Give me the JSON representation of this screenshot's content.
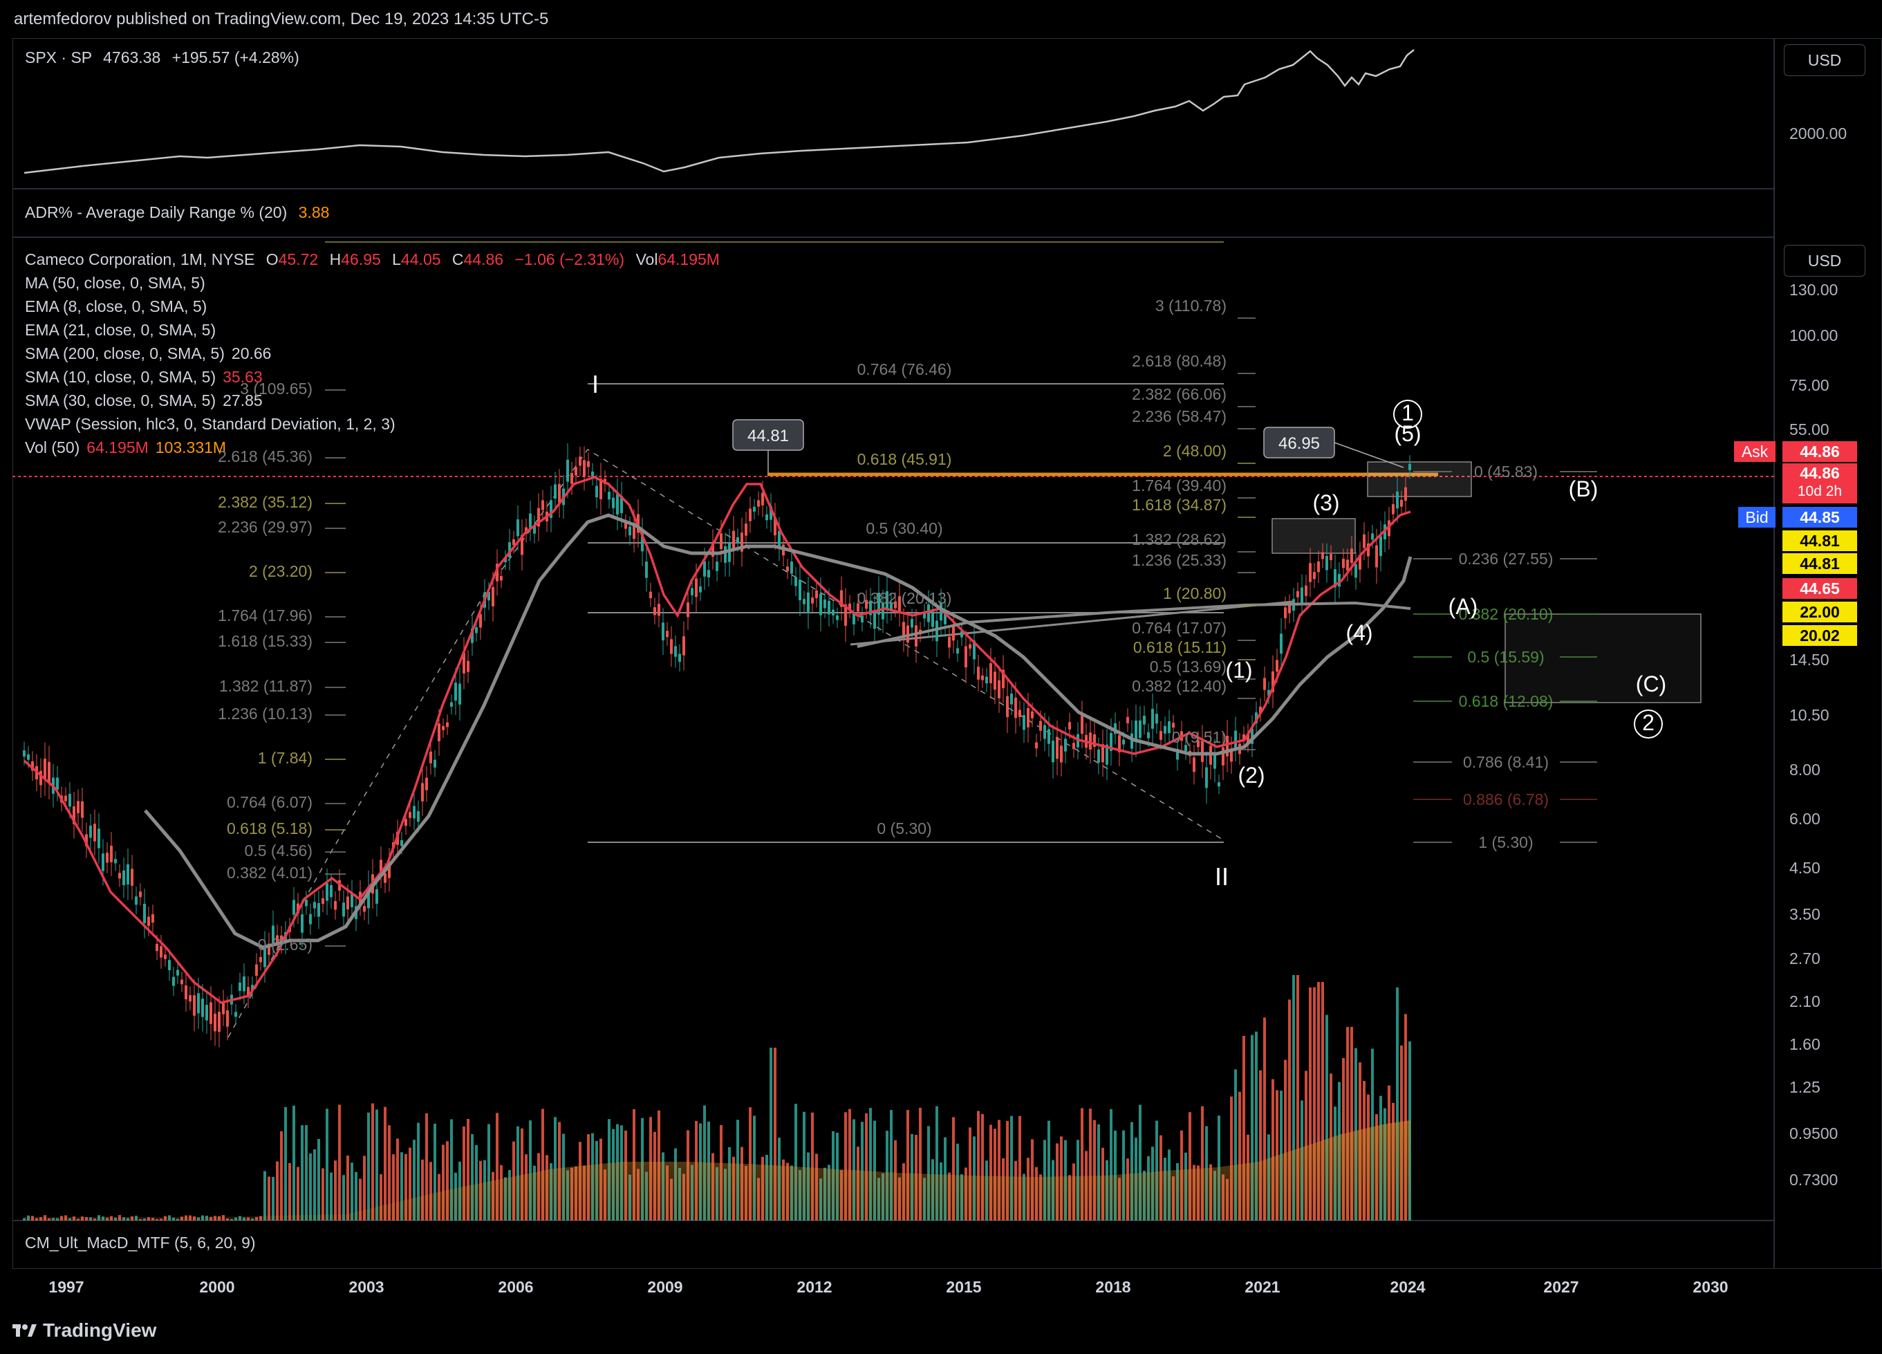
{
  "header": {
    "publish_line": "artemfedorov published on TradingView.com, Dec 19, 2023 14:35 UTC-5"
  },
  "spx": {
    "symbol": "SPX · SP",
    "last": "4763.38",
    "change": "+195.57 (+4.28%)",
    "currency": "USD",
    "axis_label": "2000.00"
  },
  "adr": {
    "label": "ADR% - Average Daily Range % (20)",
    "value": "3.88"
  },
  "main": {
    "title": "Cameco Corporation, 1M, NYSE",
    "o_label": "O",
    "o": "45.72",
    "h_label": "H",
    "h": "46.95",
    "l_label": "L",
    "l": "44.05",
    "c_label": "C",
    "c": "44.86",
    "chg": "−1.06 (−2.31%)",
    "vol_label": "Vol",
    "vol": "64.195M",
    "currency": "USD",
    "indicators": [
      {
        "label": "MA (50, close, 0, SMA, 5)",
        "value": ""
      },
      {
        "label": "EMA (8, close, 0, SMA, 5)",
        "value": ""
      },
      {
        "label": "EMA (21, close, 0, SMA, 5)",
        "value": ""
      },
      {
        "label": "SMA (200, close, 0, SMA, 5)",
        "value": "20.66"
      },
      {
        "label": "SMA (10, close, 0, SMA, 5)",
        "value": "35.63"
      },
      {
        "label": "SMA (30, close, 0, SMA, 5)",
        "value": "27.85"
      },
      {
        "label": "VWAP (Session, hlc3, 0, Standard Deviation, 1, 2, 3)",
        "value": ""
      },
      {
        "label": "Vol (50)",
        "value": "64.195M",
        "value2": "103.331M"
      }
    ],
    "price_axis": [
      "130.00",
      "100.00",
      "75.00",
      "55.00",
      "14.50",
      "10.50",
      "8.00",
      "6.00",
      "4.50",
      "3.50",
      "2.70",
      "2.10",
      "1.60",
      "1.25",
      "0.9500",
      "0.7300"
    ],
    "price_tags": [
      {
        "text": "Ask",
        "value": "44.86",
        "bg": "#f23645"
      },
      {
        "text": "44.86",
        "sub": "10d 2h",
        "bg": "#f23645"
      },
      {
        "text": "Bid",
        "value": "44.85",
        "bg": "#2962ff"
      },
      {
        "text": "44.81",
        "bg": "#f7e600"
      },
      {
        "text": "44.81",
        "bg": "#f7e600"
      },
      {
        "text": "44.65",
        "bg": "#f23645"
      },
      {
        "text": "22.00",
        "bg": "#f7e600"
      },
      {
        "text": "20.02",
        "bg": "#f7e600"
      }
    ],
    "callouts": [
      "44.81",
      "46.95"
    ],
    "fib_left": [
      "3 (109.65)",
      "2.618 (45.36)",
      "2.382 (35.12)",
      "2.236 (29.97)",
      "2 (23.20)",
      "1.764 (17.96)",
      "1.618 (15.33)",
      "1.382 (11.87)",
      "1.236 (10.13)",
      "1 (7.84)",
      "0.764 (6.07)",
      "0.618 (5.18)",
      "0.5 (4.56)",
      "0.382 (4.01)",
      "0 (2.65)"
    ],
    "fib_mid": [
      "0.764 (76.46)",
      "0.618 (45.91)",
      "0.5 (30.40)",
      "0.382 (20.13)",
      "0 (5.30)"
    ],
    "fib_right": [
      "3 (110.78)",
      "2.618 (80.48)",
      "2.382 (66.06)",
      "2.236 (58.47)",
      "2 (48.00)",
      "1.764 (39.40)",
      "1.618 (34.87)",
      "1.382 (28.62)",
      "1.236 (25.33)",
      "1 (20.80)",
      "0.764 (17.07)",
      "0.618 (15.11)",
      "0.5 (13.69)",
      "0.382 (12.40)",
      "0 (9.51)"
    ],
    "fib_retr": [
      "0 (45.83)",
      "0.236 (27.55)",
      "0.382 (20.10)",
      "0.5 (15.59)",
      "0.618 (12.08)",
      "0.786 (8.41)",
      "0.886 (6.78)",
      "1 (5.30)"
    ],
    "wave_labels": [
      "I",
      "II",
      "(1)",
      "(2)",
      "(3)",
      "(4)",
      "(5)",
      "(A)",
      "(B)",
      "(C)",
      "1",
      "2"
    ]
  },
  "macd": {
    "label": "CM_Ult_MacD_MTF (5, 6, 20, 9)"
  },
  "time_axis": [
    "1997",
    "2000",
    "2003",
    "2006",
    "2009",
    "2012",
    "2015",
    "2018",
    "2021",
    "2024",
    "2027",
    "2030"
  ],
  "branding": {
    "logo_text": "TradingView"
  },
  "colors": {
    "red": "#f23645",
    "ema_red": "#e83a4b",
    "ma_gray": "#8a8a8a",
    "fib_olive": "#9b9544",
    "fib_gray": "#7a7a7a",
    "fib_green": "#4a8a3a",
    "up": "#26a69a",
    "down": "#ef5350"
  }
}
